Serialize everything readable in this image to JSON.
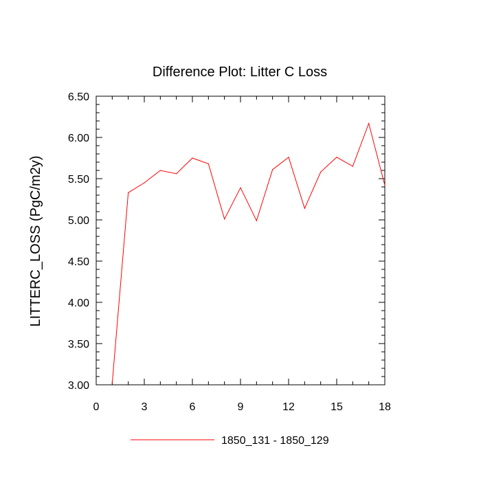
{
  "chart_data": {
    "type": "line",
    "title": "Difference Plot: Litter C Loss",
    "xlabel": "",
    "ylabel": "LITTERC_LOSS  (PgC/m2y)",
    "xlim": [
      0,
      18
    ],
    "ylim": [
      3.0,
      6.5
    ],
    "xticks": [
      0,
      3,
      6,
      9,
      12,
      15,
      18
    ],
    "xtick_labels": [
      "0",
      "3",
      "6",
      "9",
      "12",
      "15",
      "18"
    ],
    "yticks": [
      3.0,
      3.5,
      4.0,
      4.5,
      5.0,
      5.5,
      6.0,
      6.5
    ],
    "ytick_labels": [
      "3.00",
      "3.50",
      "4.00",
      "4.50",
      "5.00",
      "5.50",
      "6.00",
      "6.50"
    ],
    "grid": false,
    "legend_position": "bottom-center",
    "series": [
      {
        "name": "1850_131 - 1850_129",
        "color": "#ff0000",
        "x": [
          1,
          2,
          3,
          4,
          5,
          6,
          7,
          8,
          9,
          10,
          11,
          12,
          13,
          14,
          15,
          16,
          17,
          18
        ],
        "y": [
          3.02,
          5.33,
          5.45,
          5.6,
          5.56,
          5.75,
          5.68,
          5.01,
          5.39,
          4.99,
          5.61,
          5.76,
          5.14,
          5.58,
          5.76,
          5.65,
          6.17,
          5.42
        ]
      }
    ]
  }
}
